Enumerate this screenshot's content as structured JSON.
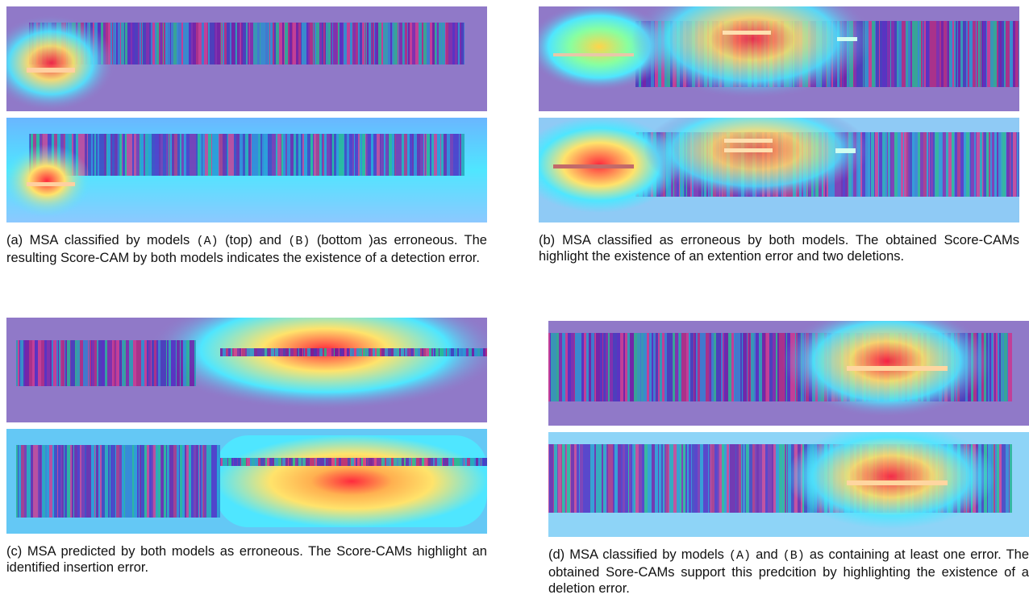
{
  "panels": [
    {
      "id": "a",
      "caption": [
        {
          "text": "(a) MSA classified by models ",
          "mono": false
        },
        {
          "text": "(A)",
          "mono": true
        },
        {
          "text": " (top) and ",
          "mono": false
        },
        {
          "text": "(B)",
          "mono": true
        },
        {
          "text": " (bottom )as erroneous. The resulting Score-CAM by both models indicates the existence of a detection error.",
          "mono": false
        }
      ]
    },
    {
      "id": "b",
      "caption": [
        {
          "text": "(b) MSA classified as erroneous by both models. The obtained Score-CAMs highlight the existence of an extention error and two deletions.",
          "mono": false
        }
      ]
    },
    {
      "id": "c",
      "caption": [
        {
          "text": "(c) MSA predicted by both models as erroneous. The Score-CAMs highlight an identified insertion error.",
          "mono": false
        }
      ]
    },
    {
      "id": "d",
      "caption": [
        {
          "text": "(d) MSA classified by models ",
          "mono": false
        },
        {
          "text": "(A)",
          "mono": true
        },
        {
          "text": " and ",
          "mono": false
        },
        {
          "text": "(B)",
          "mono": true
        },
        {
          "text": " as containing at least one error. The obtained Sore-CAMs support this predcition by highlighting the existence of a deletion error.",
          "mono": false
        }
      ]
    }
  ],
  "colors": {
    "background": "#9079c8",
    "cool": "#4fe6ff",
    "warm": "#ffe36b",
    "hot": "#ff2a3d"
  }
}
